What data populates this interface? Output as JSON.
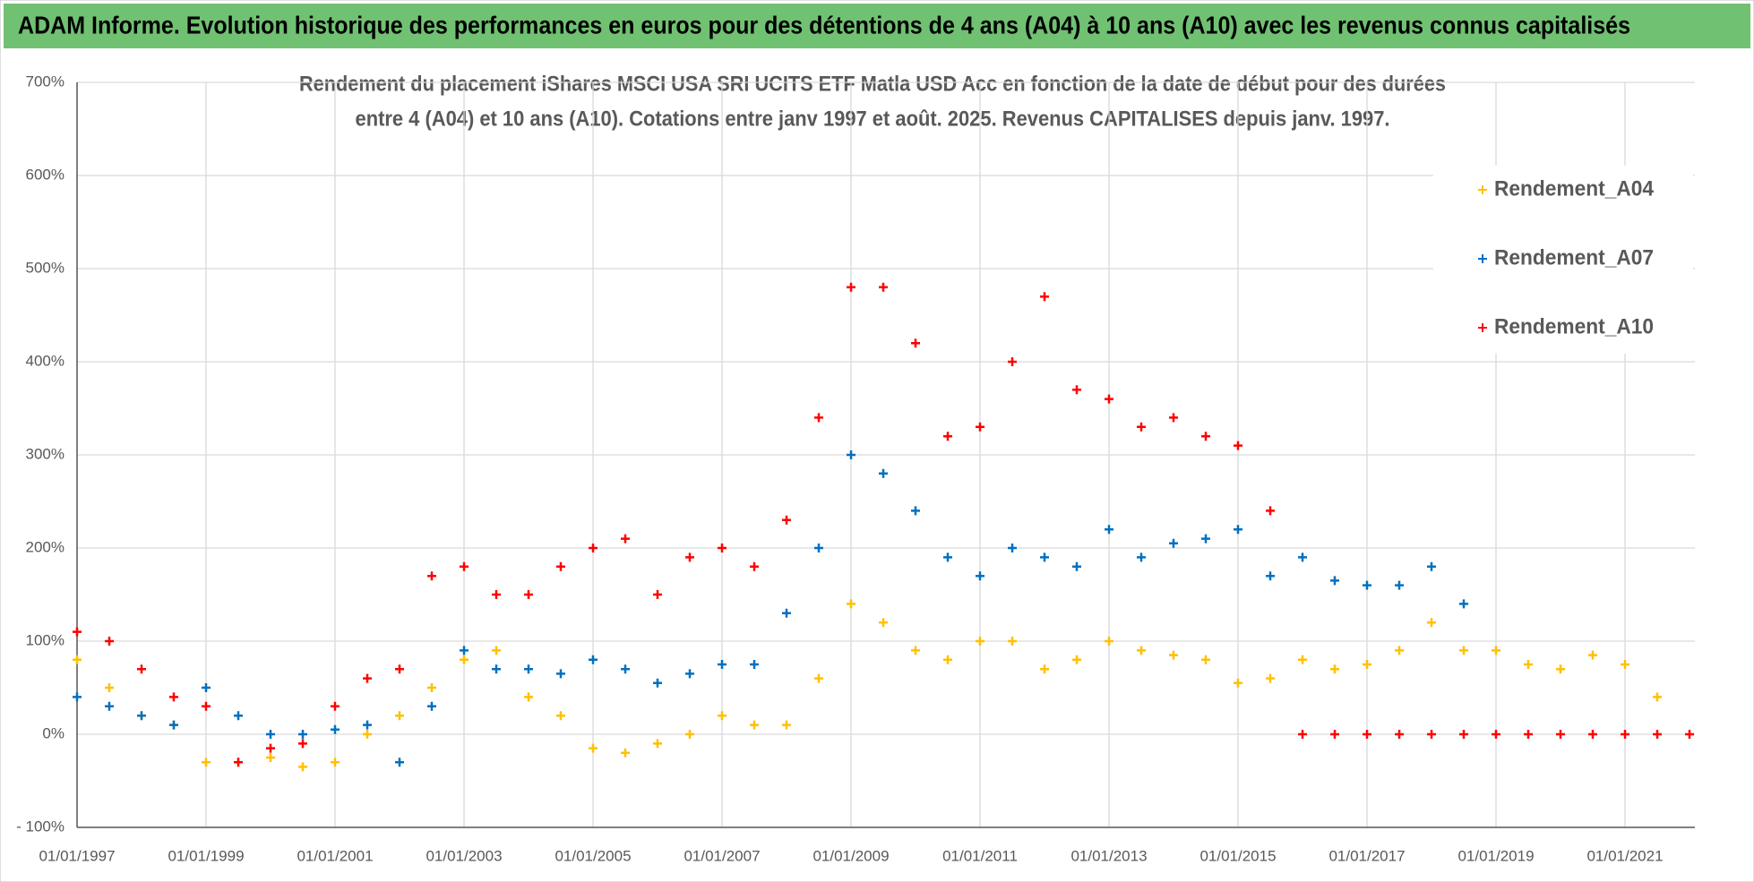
{
  "header": {
    "title": "ADAM Informe. Evolution historique des performances en euros pour des détentions de 4 ans (A04) à 10 ans (A10) avec les revenus connus capitalisés"
  },
  "chart_data": {
    "type": "scatter",
    "title": [
      "Rendement du placement iShares MSCI USA SRI UCITS ETF Matla USD Acc en fonction de la date de début pour des durées",
      "entre 4 (A04) et 10 ans (A10). Cotations entre janv 1997 et août. 2025. Revenus CAPITALISES depuis janv. 1997."
    ],
    "x": [
      "01/01/1997",
      "01/07/1997",
      "01/01/1998",
      "01/07/1998",
      "01/01/1999",
      "01/07/1999",
      "01/01/2000",
      "01/07/2000",
      "01/01/2001",
      "01/07/2001",
      "01/01/2002",
      "01/07/2002",
      "01/01/2003",
      "01/07/2003",
      "01/01/2004",
      "01/07/2004",
      "01/01/2005",
      "01/07/2005",
      "01/01/2006",
      "01/07/2006",
      "01/01/2007",
      "01/07/2007",
      "01/01/2008",
      "01/07/2008",
      "01/01/2009",
      "01/07/2009",
      "01/01/2010",
      "01/07/2010",
      "01/01/2011",
      "01/07/2011",
      "01/01/2012",
      "01/07/2012",
      "01/01/2013",
      "01/07/2013",
      "01/01/2014",
      "01/07/2014",
      "01/01/2015",
      "01/07/2015",
      "01/01/2016",
      "01/07/2016",
      "01/01/2017",
      "01/07/2017",
      "01/01/2018",
      "01/07/2018",
      "01/01/2019",
      "01/07/2019",
      "01/01/2020",
      "01/07/2020",
      "01/01/2021",
      "01/07/2021",
      "01/01/2022"
    ],
    "series": [
      {
        "name": "Rendement_A04",
        "color": "#ffc000",
        "values": [
          80,
          50,
          20,
          10,
          -30,
          -30,
          -25,
          -35,
          -30,
          0,
          20,
          50,
          80,
          90,
          40,
          20,
          -15,
          -20,
          -10,
          0,
          20,
          10,
          10,
          60,
          140,
          120,
          90,
          80,
          100,
          100,
          70,
          80,
          100,
          90,
          85,
          80,
          55,
          60,
          80,
          70,
          75,
          90,
          120,
          90,
          90,
          75,
          70,
          85,
          75,
          40,
          null
        ]
      },
      {
        "name": "Rendement_A07",
        "color": "#0070c0",
        "values": [
          40,
          30,
          20,
          10,
          50,
          20,
          0,
          0,
          5,
          10,
          -30,
          30,
          90,
          70,
          70,
          65,
          80,
          70,
          55,
          65,
          75,
          75,
          130,
          200,
          300,
          280,
          240,
          190,
          170,
          200,
          190,
          180,
          220,
          190,
          205,
          210,
          220,
          170,
          190,
          165,
          160,
          160,
          180,
          140,
          null,
          null,
          null,
          null,
          null,
          null,
          null
        ]
      },
      {
        "name": "Rendement_A10",
        "color": "#ff0000",
        "values": [
          110,
          100,
          70,
          40,
          30,
          -30,
          -15,
          -10,
          30,
          60,
          70,
          170,
          180,
          150,
          150,
          180,
          200,
          210,
          150,
          190,
          200,
          180,
          230,
          340,
          480,
          480,
          420,
          320,
          330,
          400,
          470,
          370,
          360,
          330,
          340,
          320,
          310,
          240,
          0,
          0,
          0,
          0,
          0,
          0,
          0,
          0,
          0,
          0,
          0,
          0,
          0
        ]
      }
    ],
    "xlim": [
      "01/01/1997",
      "01/02/2022"
    ],
    "xticks": [
      "01/01/1997",
      "01/01/1999",
      "01/01/2001",
      "01/01/2003",
      "01/01/2005",
      "01/01/2007",
      "01/01/2009",
      "01/01/2011",
      "01/01/2013",
      "01/01/2015",
      "01/01/2017",
      "01/01/2019",
      "01/01/2021"
    ],
    "ylim": [
      -100,
      700
    ],
    "yticks": [
      {
        "value": -100,
        "label": "- 100%"
      },
      {
        "value": 0,
        "label": "0%"
      },
      {
        "value": 100,
        "label": "100%"
      },
      {
        "value": 200,
        "label": "200%"
      },
      {
        "value": 300,
        "label": "300%"
      },
      {
        "value": 400,
        "label": "400%"
      },
      {
        "value": 500,
        "label": "500%"
      },
      {
        "value": 600,
        "label": "600%"
      },
      {
        "value": 700,
        "label": "700%"
      }
    ],
    "grid": true
  }
}
